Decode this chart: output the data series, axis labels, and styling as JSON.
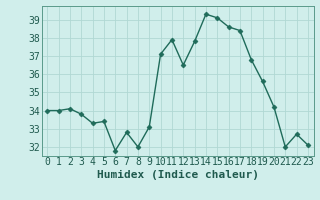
{
  "x": [
    0,
    1,
    2,
    3,
    4,
    5,
    6,
    7,
    8,
    9,
    10,
    11,
    12,
    13,
    14,
    15,
    16,
    17,
    18,
    19,
    20,
    21,
    22,
    23
  ],
  "y": [
    34,
    34,
    34.1,
    33.8,
    33.3,
    33.4,
    31.8,
    32.8,
    32.0,
    33.1,
    37.1,
    37.9,
    36.5,
    37.8,
    39.3,
    39.1,
    38.6,
    38.4,
    36.8,
    35.6,
    34.2,
    32.0,
    32.7,
    32.1
  ],
  "line_color": "#1f6b5a",
  "marker": "D",
  "marker_size": 2.5,
  "bg_color": "#d0eeeb",
  "grid_color": "#b0d8d4",
  "xlabel": "Humidex (Indice chaleur)",
  "ylim": [
    31.5,
    39.75
  ],
  "xlim": [
    -0.5,
    23.5
  ],
  "yticks": [
    32,
    33,
    34,
    35,
    36,
    37,
    38,
    39
  ],
  "xticks": [
    0,
    1,
    2,
    3,
    4,
    5,
    6,
    7,
    8,
    9,
    10,
    11,
    12,
    13,
    14,
    15,
    16,
    17,
    18,
    19,
    20,
    21,
    22,
    23
  ],
  "xlabel_fontsize": 8,
  "tick_fontsize": 7,
  "line_width": 1.0
}
